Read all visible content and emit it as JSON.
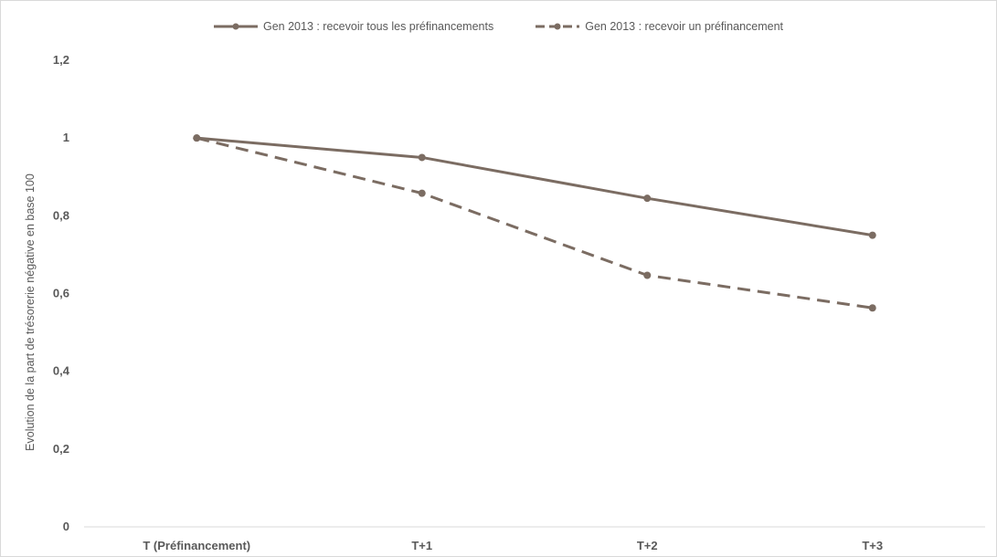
{
  "chart_data": {
    "type": "line",
    "categories": [
      "T (Préfinancement)",
      "T+1",
      "T+2",
      "T+3"
    ],
    "series": [
      {
        "name": "Gen 2013 : recevoir tous les préfinancements",
        "values": [
          1.0,
          0.95,
          0.845,
          0.75
        ],
        "style": "solid",
        "color": "#7b6c62"
      },
      {
        "name": "Gen 2013 : recevoir un préfinancement",
        "values": [
          1.0,
          0.858,
          0.647,
          0.563
        ],
        "style": "dashed",
        "color": "#7b6c62"
      }
    ],
    "ylabel": "Evolution de la part de trésorerie négative en base 100",
    "xlabel": "",
    "title": "",
    "ylim": [
      0,
      1.2
    ],
    "yticks": [
      "0",
      "0,2",
      "0,4",
      "0,6",
      "0,8",
      "1",
      "1,2"
    ],
    "grid": false,
    "legend_position": "top-center"
  }
}
